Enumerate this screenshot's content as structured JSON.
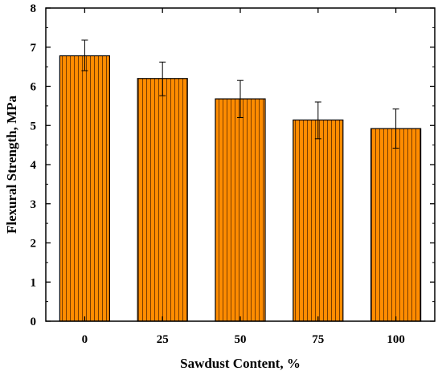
{
  "chart_data": {
    "type": "bar",
    "categories": [
      "0",
      "25",
      "50",
      "75",
      "100"
    ],
    "values": [
      6.78,
      6.2,
      5.68,
      5.14,
      4.92
    ],
    "error_upper": [
      7.18,
      6.62,
      6.15,
      5.6,
      5.42
    ],
    "error_lower": [
      6.4,
      5.76,
      5.2,
      4.66,
      4.42
    ],
    "xlabel": "Sawdust Content, %",
    "ylabel": "Flexural Strength, MPa",
    "ylim": [
      0,
      8
    ],
    "yticks": [
      "0",
      "1",
      "2",
      "3",
      "4",
      "5",
      "6",
      "7",
      "8"
    ],
    "bar_color": "#ff8c00",
    "bar_hatch_color": "#5a2a00",
    "grid": false,
    "legend": "none"
  }
}
